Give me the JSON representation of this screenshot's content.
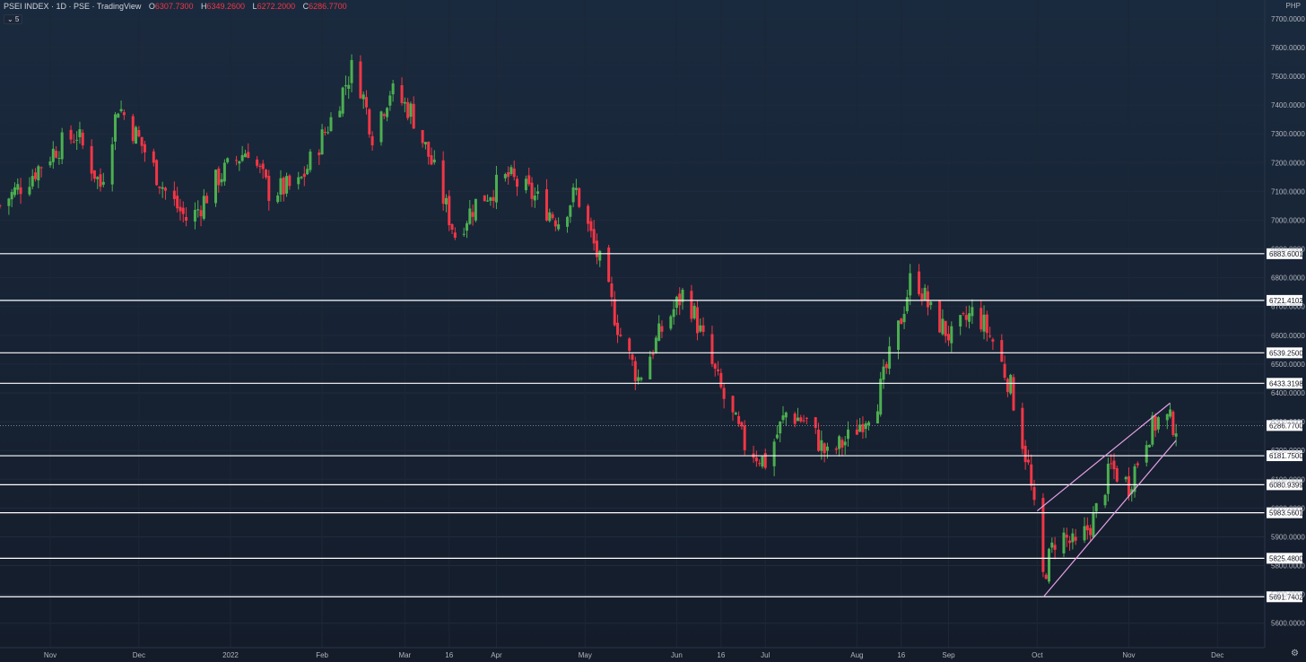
{
  "header": {
    "symbol_line": "PSEI INDEX · 1D · PSE · TradingView",
    "ohlc": [
      {
        "key": "O",
        "value": "6307.7300"
      },
      {
        "key": "H",
        "value": "6349.2600"
      },
      {
        "key": "L",
        "value": "6272.2000"
      },
      {
        "key": "C",
        "value": "6286.7700"
      }
    ],
    "indicator_toggle": "⌄ 5"
  },
  "currency": "PHP",
  "colors": {
    "up": "#4caf50",
    "down": "#f23645",
    "level_line": "#ffffff",
    "channel": "#e6a0e6",
    "axis_text": "#b2b5be",
    "label_bg": "#ffffff",
    "label_text": "#131722"
  },
  "chart_data": {
    "type": "candlestick",
    "title": "PSEI INDEX · 1D · PSE",
    "y_range": [
      5515,
      7765
    ],
    "x_range": [
      "2021-10-15",
      "2022-12-17"
    ],
    "y_ticks": [
      "7700.0000",
      "7600.0000",
      "7500.0000",
      "7400.0000",
      "7300.0000",
      "7200.0000",
      "7100.0000",
      "7000.0000",
      "6900.0000",
      "6800.0000",
      "6700.0000",
      "6600.0000",
      "6500.0000",
      "6400.0000",
      "6300.0000",
      "6200.0000",
      "6100.0000",
      "6000.0000",
      "5900.0000",
      "5800.0000",
      "5700.0000",
      "5600.0000"
    ],
    "x_ticks": [
      {
        "label": "Nov",
        "date": "2021-11-01"
      },
      {
        "label": "Dec",
        "date": "2021-12-01"
      },
      {
        "label": "2022",
        "date": "2022-01-01"
      },
      {
        "label": "Feb",
        "date": "2022-02-01"
      },
      {
        "label": "Mar",
        "date": "2022-03-01"
      },
      {
        "label": "16",
        "date": "2022-03-16"
      },
      {
        "label": "Apr",
        "date": "2022-04-01"
      },
      {
        "label": "May",
        "date": "2022-05-01"
      },
      {
        "label": "Jun",
        "date": "2022-06-01"
      },
      {
        "label": "16",
        "date": "2022-06-16"
      },
      {
        "label": "Jul",
        "date": "2022-07-01"
      },
      {
        "label": "Aug",
        "date": "2022-08-01"
      },
      {
        "label": "16",
        "date": "2022-08-16"
      },
      {
        "label": "Sep",
        "date": "2022-09-01"
      },
      {
        "label": "Oct",
        "date": "2022-10-01"
      },
      {
        "label": "Nov",
        "date": "2022-11-01"
      },
      {
        "label": "Dec",
        "date": "2022-12-01"
      }
    ],
    "key_levels": [
      6883.6001,
      6721.4102,
      6539.25,
      6433.3198,
      6181.75,
      6080.9399,
      5983.5601,
      5825.48,
      5691.7402
    ],
    "last_price": 6286.77,
    "channel": [
      {
        "points": [
          [
            "2022-10-01",
            5990
          ],
          [
            "2022-11-15",
            6365
          ]
        ]
      },
      {
        "points": [
          [
            "2022-10-03",
            5690
          ],
          [
            "2022-11-17",
            6235
          ]
        ]
      }
    ],
    "close_path": [
      [
        "2021-10-15",
        7050
      ],
      [
        "2021-10-25",
        7150
      ],
      [
        "2021-11-03",
        7250
      ],
      [
        "2021-11-10",
        7300
      ],
      [
        "2021-11-18",
        7120
      ],
      [
        "2021-11-24",
        7400
      ],
      [
        "2021-12-01",
        7280
      ],
      [
        "2021-12-10",
        7100
      ],
      [
        "2021-12-18",
        6990
      ],
      [
        "2021-12-28",
        7150
      ],
      [
        "2022-01-07",
        7250
      ],
      [
        "2022-01-14",
        7100
      ],
      [
        "2022-01-24",
        7120
      ],
      [
        "2022-02-04",
        7350
      ],
      [
        "2022-02-12",
        7550
      ],
      [
        "2022-02-18",
        7300
      ],
      [
        "2022-02-24",
        7450
      ],
      [
        "2022-03-03",
        7380
      ],
      [
        "2022-03-10",
        7200
      ],
      [
        "2022-03-18",
        6950
      ],
      [
        "2022-03-25",
        7060
      ],
      [
        "2022-04-05",
        7150
      ],
      [
        "2022-04-14",
        7080
      ],
      [
        "2022-04-22",
        7000
      ],
      [
        "2022-04-28",
        7100
      ],
      [
        "2022-05-06",
        6850
      ],
      [
        "2022-05-13",
        6600
      ],
      [
        "2022-05-19",
        6450
      ],
      [
        "2022-05-27",
        6620
      ],
      [
        "2022-06-04",
        6760
      ],
      [
        "2022-06-10",
        6580
      ],
      [
        "2022-06-17",
        6380
      ],
      [
        "2022-06-24",
        6220
      ],
      [
        "2022-07-01",
        6160
      ],
      [
        "2022-07-08",
        6330
      ],
      [
        "2022-07-15",
        6300
      ],
      [
        "2022-07-22",
        6180
      ],
      [
        "2022-07-30",
        6250
      ],
      [
        "2022-08-08",
        6380
      ],
      [
        "2022-08-15",
        6620
      ],
      [
        "2022-08-20",
        6830
      ],
      [
        "2022-08-26",
        6680
      ],
      [
        "2022-09-02",
        6590
      ],
      [
        "2022-09-10",
        6690
      ],
      [
        "2022-09-16",
        6580
      ],
      [
        "2022-09-22",
        6420
      ],
      [
        "2022-09-28",
        6140
      ],
      [
        "2022-10-03",
        5760
      ],
      [
        "2022-10-08",
        5920
      ],
      [
        "2022-10-14",
        5860
      ],
      [
        "2022-10-20",
        5960
      ],
      [
        "2022-10-26",
        6140
      ],
      [
        "2022-11-01",
        6080
      ],
      [
        "2022-11-07",
        6250
      ],
      [
        "2022-11-12",
        6320
      ],
      [
        "2022-11-17",
        6287
      ]
    ],
    "note": "candles approximate the daily OHLC trajectory read from the chart"
  }
}
